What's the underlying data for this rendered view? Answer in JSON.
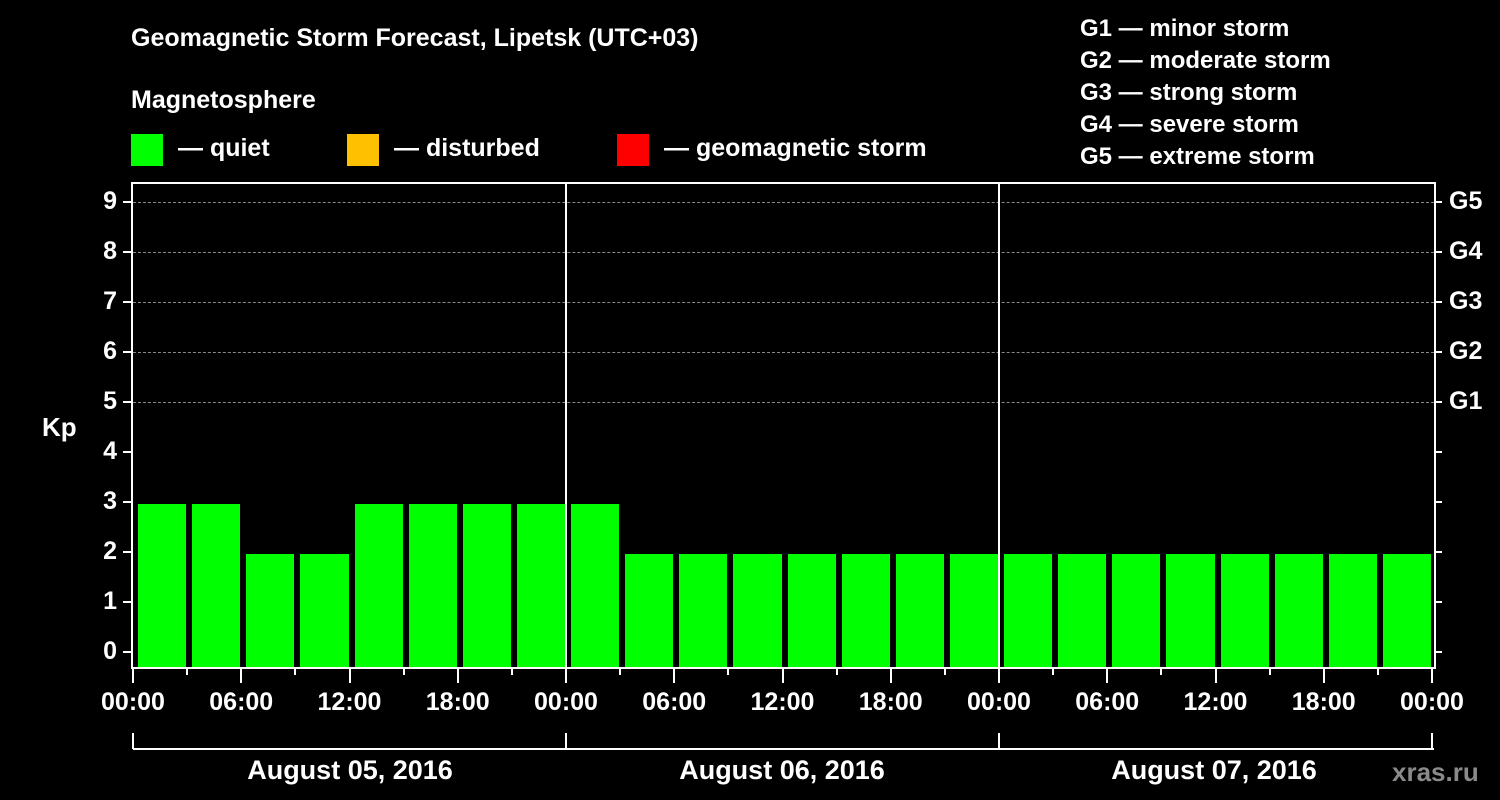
{
  "header": {
    "title": "Geomagnetic Storm Forecast, Lipetsk (UTC+03)",
    "subtitle": "Magnetosphere"
  },
  "legend": [
    {
      "label": "— quiet",
      "color": "#00ff00"
    },
    {
      "label": "— disturbed",
      "color": "#ffc000"
    },
    {
      "label": "— geomagnetic storm",
      "color": "#ff0000"
    }
  ],
  "g_scale_legend": [
    "G1 — minor storm",
    "G2 — moderate storm",
    "G3 — strong storm",
    "G4 — severe storm",
    "G5 — extreme storm"
  ],
  "axis": {
    "ylabel": "Kp",
    "yticks": [
      "0",
      "1",
      "2",
      "3",
      "4",
      "5",
      "6",
      "7",
      "8",
      "9"
    ],
    "right_ticks": [
      {
        "kp": 5,
        "label": "G1"
      },
      {
        "kp": 6,
        "label": "G2"
      },
      {
        "kp": 7,
        "label": "G3"
      },
      {
        "kp": 8,
        "label": "G4"
      },
      {
        "kp": 9,
        "label": "G5"
      }
    ],
    "xticks": [
      "00:00",
      "06:00",
      "12:00",
      "18:00",
      "00:00",
      "06:00",
      "12:00",
      "18:00",
      "00:00",
      "06:00",
      "12:00",
      "18:00",
      "00:00"
    ],
    "dates": [
      "August 05, 2016",
      "August 06, 2016",
      "August 07, 2016"
    ]
  },
  "watermark": "xras.ru",
  "chart_data": {
    "type": "bar",
    "title": "Geomagnetic Storm Forecast, Lipetsk (UTC+03)",
    "xlabel": "",
    "ylabel": "Kp",
    "ylim": [
      0,
      9
    ],
    "grid": "dashed horizontal at Kp 5–9",
    "interval_hours": 3,
    "categories": [
      "Aug 05 00:00",
      "Aug 05 03:00",
      "Aug 05 06:00",
      "Aug 05 09:00",
      "Aug 05 12:00",
      "Aug 05 15:00",
      "Aug 05 18:00",
      "Aug 05 21:00",
      "Aug 06 00:00",
      "Aug 06 03:00",
      "Aug 06 06:00",
      "Aug 06 09:00",
      "Aug 06 12:00",
      "Aug 06 15:00",
      "Aug 06 18:00",
      "Aug 06 21:00",
      "Aug 07 00:00",
      "Aug 07 03:00",
      "Aug 07 06:00",
      "Aug 07 09:00",
      "Aug 07 12:00",
      "Aug 07 15:00",
      "Aug 07 18:00",
      "Aug 07 21:00"
    ],
    "values": [
      3,
      3,
      2,
      2,
      3,
      3,
      3,
      3,
      3,
      2,
      2,
      2,
      2,
      2,
      2,
      2,
      2,
      2,
      2,
      2,
      2,
      2,
      2,
      2
    ],
    "status": [
      "quiet",
      "quiet",
      "quiet",
      "quiet",
      "quiet",
      "quiet",
      "quiet",
      "quiet",
      "quiet",
      "quiet",
      "quiet",
      "quiet",
      "quiet",
      "quiet",
      "quiet",
      "quiet",
      "quiet",
      "quiet",
      "quiet",
      "quiet",
      "quiet",
      "quiet",
      "quiet",
      "quiet"
    ],
    "legend": [
      "quiet",
      "disturbed",
      "geomagnetic storm"
    ],
    "legend_position": "top"
  }
}
